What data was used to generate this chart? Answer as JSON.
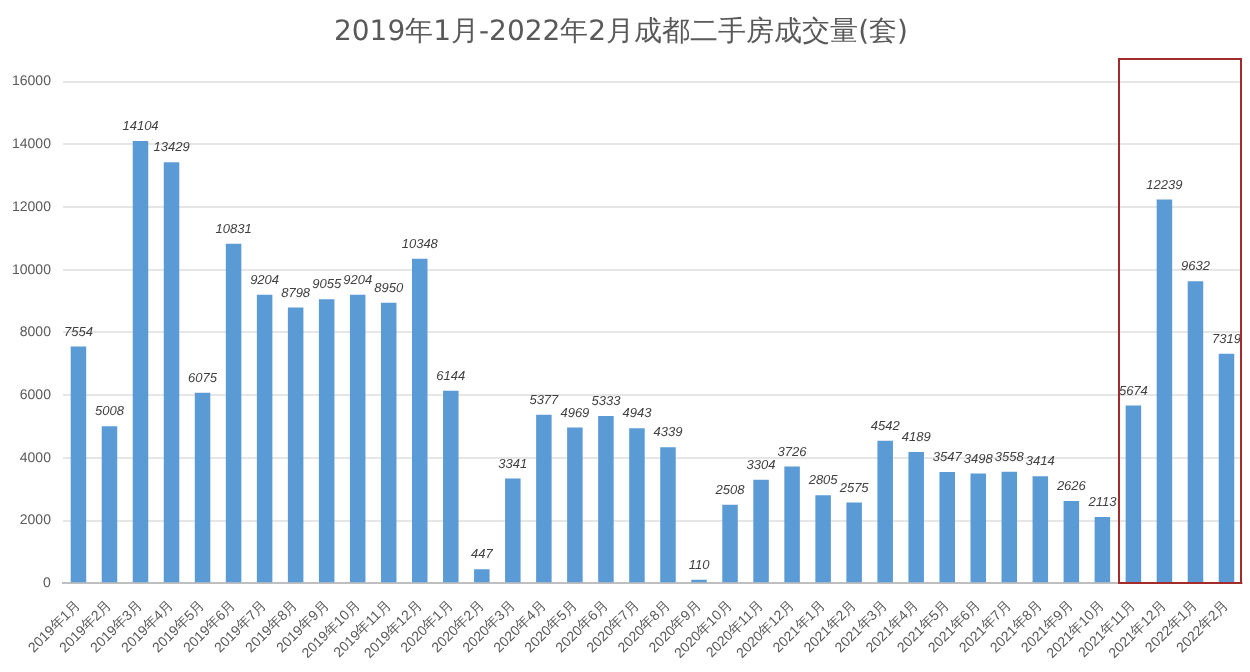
{
  "chart_data": {
    "type": "bar",
    "title": "2019年1月-2022年2月成都二手房成交量(套)",
    "categories": [
      "2019年1月",
      "2019年2月",
      "2019年3月",
      "2019年4月",
      "2019年5月",
      "2019年6月",
      "2019年7月",
      "2019年8月",
      "2019年9月",
      "2019年10月",
      "2019年11月",
      "2019年12月",
      "2020年1月",
      "2020年2月",
      "2020年3月",
      "2020年4月",
      "2020年5月",
      "2020年6月",
      "2020年7月",
      "2020年8月",
      "2020年9月",
      "2020年10月",
      "2020年11月",
      "2020年12月",
      "2021年1月",
      "2021年2月",
      "2021年3月",
      "2021年4月",
      "2021年5月",
      "2021年6月",
      "2021年7月",
      "2021年8月",
      "2021年9月",
      "2021年10月",
      "2021年11月",
      "2021年12月",
      "2022年1月",
      "2022年2月"
    ],
    "values": [
      7554,
      5008,
      14104,
      13429,
      6075,
      10831,
      9204,
      8798,
      9055,
      9204,
      8950,
      10348,
      6144,
      447,
      3341,
      5377,
      4969,
      5333,
      4943,
      4339,
      110,
      2508,
      3304,
      3726,
      2805,
      2575,
      4542,
      4189,
      3547,
      3498,
      3558,
      3414,
      2626,
      2113,
      5674,
      12239,
      9632,
      7319
    ],
    "color": "#5b9bd5",
    "data_labels": true,
    "ylim": [
      0,
      16000
    ],
    "yticks": [
      0,
      2000,
      4000,
      6000,
      8000,
      10000,
      12000,
      14000,
      16000
    ],
    "grid": "y"
  }
}
